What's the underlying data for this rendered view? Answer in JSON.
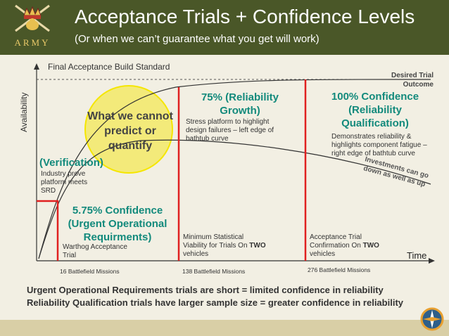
{
  "header": {
    "title": "Acceptance Trials + Confidence Levels",
    "subtitle": "(Or when we can’t guarantee what you get will work)",
    "logo_text": "ARMY"
  },
  "chart": {
    "build_standard_label": "Final Acceptance Build Standard",
    "y_axis_label": "Availability",
    "x_axis_label": "Time",
    "desired_outcome": "Desired Trial Outcome",
    "bubble_text": "What we cannot predict or quantify",
    "verification_label": "(Verification)",
    "verification_desc": "Industry prove platform meets SRD",
    "uor_confidence": "5.75% Confidence (Urgent Operational Requirments)",
    "uor_trial": "Warthog Acceptance Trial",
    "reliability_growth": "75% (Reliability Growth)",
    "reliability_growth_desc": "Stress platform to highlight design failures – left edge of bathtub curve",
    "reliability_growth_trial_prefix": "Minimum Statistical Viability for Trials On ",
    "reliability_growth_trial_bold": "TWO",
    "reliability_growth_trial_suffix": " vehicles",
    "qualification": "100% Confidence (Reliability Qualification)",
    "qualification_desc": "Demonstrates reliability & highlights component fatigue – right edge of bathtub curve",
    "qualification_trial_prefix": "Acceptance Trial Confirmation On ",
    "qualification_trial_bold": "TWO",
    "qualification_trial_suffix": " vehicles",
    "investments_note": "Investments can go down as well as up",
    "missions": [
      "16 Battlefield Missions",
      "138 Battlefield Missions",
      "276 Battlefield Missions"
    ]
  },
  "summary": {
    "line1": "Urgent Operational Requirements trials are short = limited confidence in reliability",
    "line2": "Reliability Qualification trials have larger sample size = greater confidence in reliability"
  },
  "colors": {
    "header_bg": "#4a5728",
    "accent_teal": "#138a7c",
    "marker_red": "#e02020",
    "bubble_yellow": "#f3ea7a"
  }
}
